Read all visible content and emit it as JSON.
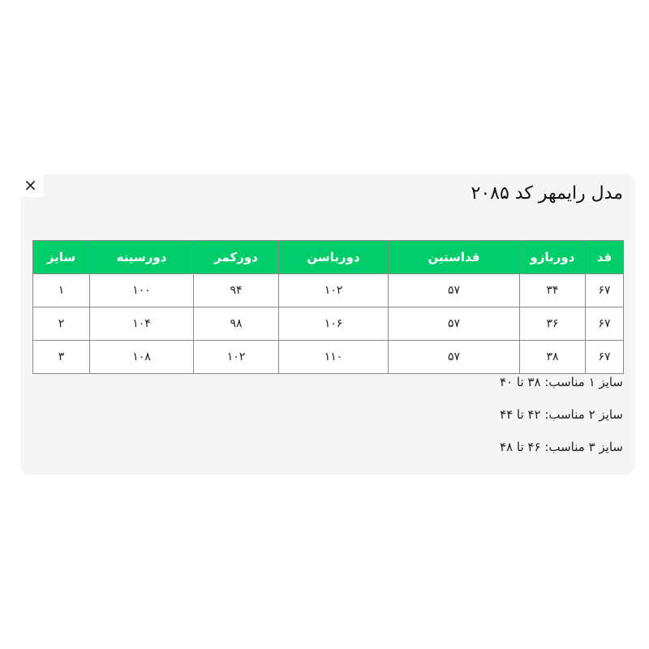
{
  "close_label": "×",
  "title": "مدل رایمهر کد ۲۰۸۵",
  "table": {
    "headers": [
      "قد",
      "دوربازو",
      "قداستین",
      "دورباسن",
      "دورکمر",
      "دورسینه",
      "سایز"
    ],
    "rows": [
      [
        "۶۷",
        "۳۴",
        "۵۷",
        "۱۰۲",
        "۹۴",
        "۱۰۰",
        "۱"
      ],
      [
        "۶۷",
        "۳۶",
        "۵۷",
        "۱۰۶",
        "۹۸",
        "۱۰۴",
        "۲"
      ],
      [
        "۶۷",
        "۳۸",
        "۵۷",
        "۱۱۰",
        "۱۰۲",
        "۱۰۸",
        "۳"
      ]
    ]
  },
  "notes": [
    "سایز ۱ مناسب: ۳۸ تا ۴۰",
    "سایز ۲ مناسب: ۴۲ تا ۴۴",
    "سایز ۳ مناسب: ۴۶ تا ۴۸"
  ],
  "colors": {
    "header": "#00cc6a",
    "card": "#f5f5f5"
  }
}
